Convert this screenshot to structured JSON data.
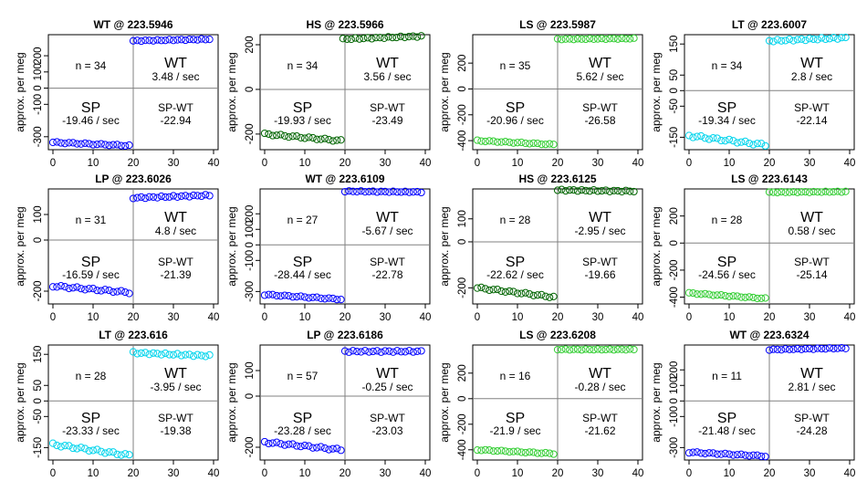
{
  "labels": {
    "ylabel": "approx. per meg",
    "sp": "SP",
    "wt": "WT",
    "diff": "SP-WT"
  },
  "colors": {
    "blue": "#0000ff",
    "darkgreen": "#006400",
    "green": "#32cd32",
    "cyan": "#00d4ec",
    "grid": "#808080"
  },
  "chart_data": [
    {
      "type": "scatter",
      "title": "WT @ 223.5946",
      "color": "blue",
      "xlim": [
        0,
        40
      ],
      "ylim": [
        -380,
        330
      ],
      "yticks": [
        -300,
        -100,
        0,
        100,
        200
      ],
      "xticks": [
        0,
        10,
        20,
        30,
        40
      ],
      "n": "n = 34",
      "sp_rate": "-19.46 / sec",
      "wt_rate": "3.48 / sec",
      "diff": "-22.94",
      "sp_y": [
        -335,
        -355
      ],
      "wt_y": [
        292,
        302
      ],
      "n_sp": 20,
      "n_wt": 20,
      "wt_start": 20
    },
    {
      "type": "scatter",
      "title": "HS @ 223.5966",
      "color": "darkgreen",
      "xlim": [
        0,
        40
      ],
      "ylim": [
        -270,
        245
      ],
      "yticks": [
        -200,
        0,
        200
      ],
      "xticks": [
        0,
        10,
        20,
        30,
        40
      ],
      "n": "n = 34",
      "sp_rate": "-19.93 / sec",
      "wt_rate": "3.56 / sec",
      "diff": "-23.49",
      "sp_y": [
        -200,
        -230
      ],
      "wt_y": [
        225,
        238
      ],
      "n_sp": 20,
      "n_wt": 20,
      "wt_start": 19.5
    },
    {
      "type": "scatter",
      "title": "LS @ 223.5987",
      "color": "green",
      "xlim": [
        0,
        40
      ],
      "ylim": [
        -470,
        420
      ],
      "yticks": [
        -400,
        -200,
        0,
        200
      ],
      "xticks": [
        0,
        10,
        20,
        30,
        40
      ],
      "n": "n = 35",
      "sp_rate": "-20.96 / sec",
      "wt_rate": "5.62 / sec",
      "diff": "-26.58",
      "sp_y": [
        -400,
        -430
      ],
      "wt_y": [
        385,
        390
      ],
      "n_sp": 20,
      "n_wt": 20,
      "wt_start": 20
    },
    {
      "type": "scatter",
      "title": "LT @ 223.6007",
      "color": "cyan",
      "xlim": [
        0,
        40
      ],
      "ylim": [
        -190,
        180
      ],
      "yticks": [
        -150,
        -50,
        0,
        50,
        150
      ],
      "xticks": [
        0,
        10,
        20,
        30,
        40
      ],
      "n": "n = 34",
      "sp_rate": "-19.34 / sec",
      "wt_rate": "2.8 / sec",
      "diff": "-22.14",
      "sp_y": [
        -145,
        -175
      ],
      "wt_y": [
        160,
        170
      ],
      "n_sp": 20,
      "n_wt": 20,
      "wt_start": 20
    },
    {
      "type": "scatter",
      "title": "LP @ 223.6026",
      "color": "blue",
      "xlim": [
        0,
        40
      ],
      "ylim": [
        -250,
        200
      ],
      "yticks": [
        -200,
        0,
        100
      ],
      "xticks": [
        0,
        10,
        20,
        30,
        40
      ],
      "n": "n = 31",
      "sp_rate": "-16.59 / sec",
      "wt_rate": "4.8 / sec",
      "diff": "-21.39",
      "sp_y": [
        -180,
        -205
      ],
      "wt_y": [
        165,
        175
      ],
      "n_sp": 20,
      "n_wt": 20,
      "wt_start": 20
    },
    {
      "type": "scatter",
      "title": "WT @ 223.6109",
      "color": "blue",
      "xlim": [
        0,
        40
      ],
      "ylim": [
        -380,
        360
      ],
      "yticks": [
        -300,
        -100,
        0,
        100,
        200
      ],
      "xticks": [
        0,
        10,
        20,
        30,
        40
      ],
      "n": "n = 27",
      "sp_rate": "-28.44 / sec",
      "wt_rate": "-5.67 / sec",
      "diff": "-22.78",
      "sp_y": [
        -320,
        -350
      ],
      "wt_y": [
        345,
        340
      ],
      "n_sp": 20,
      "n_wt": 20,
      "wt_start": 20
    },
    {
      "type": "scatter",
      "title": "HS @ 223.6125",
      "color": "darkgreen",
      "xlim": [
        0,
        40
      ],
      "ylim": [
        -270,
        230
      ],
      "yticks": [
        -200,
        0,
        100
      ],
      "xticks": [
        0,
        10,
        20,
        30,
        40
      ],
      "n": "n = 28",
      "sp_rate": "-22.62 / sec",
      "wt_rate": "-2.95 / sec",
      "diff": "-19.66",
      "sp_y": [
        -200,
        -240
      ],
      "wt_y": [
        225,
        220
      ],
      "n_sp": 20,
      "n_wt": 20,
      "wt_start": 20
    },
    {
      "type": "scatter",
      "title": "LS @ 223.6143",
      "color": "green",
      "xlim": [
        0,
        40
      ],
      "ylim": [
        -450,
        400
      ],
      "yticks": [
        -400,
        -200,
        0,
        200
      ],
      "xticks": [
        0,
        10,
        20,
        30,
        40
      ],
      "n": "n = 28",
      "sp_rate": "-24.56 / sec",
      "wt_rate": "0.58 / sec",
      "diff": "-25.14",
      "sp_y": [
        -370,
        -410
      ],
      "wt_y": [
        375,
        380
      ],
      "n_sp": 20,
      "n_wt": 20,
      "wt_start": 20
    },
    {
      "type": "scatter",
      "title": "LT @ 223.616",
      "color": "cyan",
      "xlim": [
        0,
        40
      ],
      "ylim": [
        -190,
        180
      ],
      "yticks": [
        -150,
        -50,
        0,
        50,
        150
      ],
      "xticks": [
        0,
        10,
        20,
        30,
        40
      ],
      "n": "n = 28",
      "sp_rate": "-23.33 / sec",
      "wt_rate": "-3.95 / sec",
      "diff": "-19.38",
      "sp_y": [
        -140,
        -175
      ],
      "wt_y": [
        155,
        145
      ],
      "n_sp": 20,
      "n_wt": 20,
      "wt_start": 20
    },
    {
      "type": "scatter",
      "title": "LP @ 223.6186",
      "color": "blue",
      "xlim": [
        0,
        40
      ],
      "ylim": [
        -250,
        200
      ],
      "yticks": [
        -200,
        0,
        100
      ],
      "xticks": [
        0,
        10,
        20,
        30,
        40
      ],
      "n": "n = 57",
      "sp_rate": "-23.28 / sec",
      "wt_rate": "-0.25 / sec",
      "diff": "-23.03",
      "sp_y": [
        -180,
        -210
      ],
      "wt_y": [
        175,
        175
      ],
      "n_sp": 20,
      "n_wt": 20,
      "wt_start": 20
    },
    {
      "type": "scatter",
      "title": "LS @ 223.6208",
      "color": "green",
      "xlim": [
        0,
        40
      ],
      "ylim": [
        -480,
        420
      ],
      "yticks": [
        -400,
        -200,
        0,
        200
      ],
      "xticks": [
        0,
        10,
        20,
        30,
        40
      ],
      "n": "n = 16",
      "sp_rate": "-21.9 / sec",
      "wt_rate": "-0.28 / sec",
      "diff": "-21.62",
      "sp_y": [
        -400,
        -430
      ],
      "wt_y": [
        385,
        385
      ],
      "n_sp": 20,
      "n_wt": 20,
      "wt_start": 20
    },
    {
      "type": "scatter",
      "title": "WT @ 223.6324",
      "color": "blue",
      "xlim": [
        0,
        40
      ],
      "ylim": [
        -380,
        360
      ],
      "yticks": [
        -300,
        -100,
        0,
        100,
        200
      ],
      "xticks": [
        0,
        10,
        20,
        30,
        40
      ],
      "n": "n = 11",
      "sp_rate": "-21.48 / sec",
      "wt_rate": "2.81 / sec",
      "diff": "-24.28",
      "sp_y": [
        -330,
        -355
      ],
      "wt_y": [
        330,
        340
      ],
      "n_sp": 20,
      "n_wt": 20,
      "wt_start": 20
    }
  ]
}
